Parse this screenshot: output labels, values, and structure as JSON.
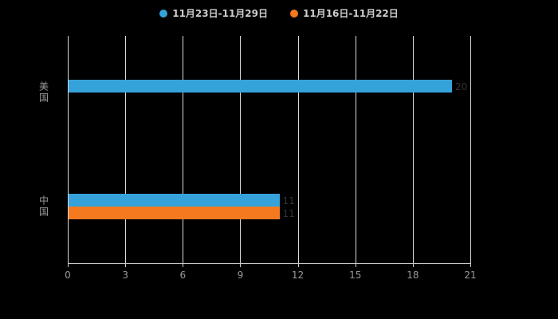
{
  "chart_data": {
    "type": "bar",
    "orientation": "horizontal",
    "title": "",
    "xlabel": "",
    "ylabel": "",
    "categories": [
      "美国",
      "中国"
    ],
    "series": [
      {
        "name": "11月23日-11月29日",
        "color": "#36a2da",
        "values": [
          20,
          11
        ]
      },
      {
        "name": "11月16日-11月22日",
        "color": "#f4791f",
        "values": [
          0,
          11
        ]
      }
    ],
    "xlim": [
      0,
      21
    ],
    "xticks": [
      0,
      3,
      6,
      9,
      12,
      15,
      18,
      21
    ],
    "grid": true,
    "legend_position": "top",
    "background_color": "#000000",
    "axis_color": "#cccccc",
    "tick_label_color": "#999999",
    "category_label_color": "#999999",
    "legend_text_color": "#cccccc",
    "value_labels": {
      "show": true,
      "color": "#333333"
    }
  }
}
